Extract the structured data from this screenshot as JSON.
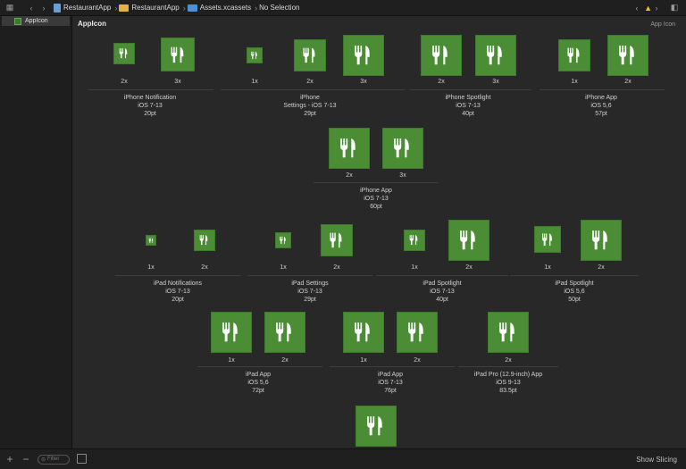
{
  "toolbar": {
    "breadcrumbs": [
      "RestaurantApp",
      "RestaurantApp",
      "Assets.xcassets",
      "No Selection"
    ]
  },
  "sidebar": {
    "items": [
      {
        "label": "AppIcon"
      }
    ]
  },
  "main": {
    "title": "AppIcon",
    "right_label": "App Icon"
  },
  "bottom": {
    "filter_placeholder": "Filter",
    "right_button": "Show Slicing"
  },
  "icon_color": "#4a8d35",
  "groups": [
    {
      "lines": [
        "iPhone Notification",
        "iOS 7-13",
        "20pt"
      ]
    },
    {
      "lines": [
        "iPhone",
        "Settings - iOS 7-13",
        "29pt"
      ]
    },
    {
      "lines": [
        "iPhone Spotlight",
        "iOS 7-13",
        "40pt"
      ]
    },
    {
      "lines": [
        "iPhone App",
        "iOS 5,6",
        "57pt"
      ]
    },
    {
      "lines": [
        "iPhone App",
        "iOS 7-13",
        "60pt"
      ]
    },
    {
      "lines": [
        "iPad Notifications",
        "iOS 7-13",
        "20pt"
      ]
    },
    {
      "lines": [
        "iPad Settings",
        "iOS 7-13",
        "29pt"
      ]
    },
    {
      "lines": [
        "iPad Spotlight",
        "iOS 7-13",
        "40pt"
      ]
    },
    {
      "lines": [
        "iPad Spotlight",
        "iOS 5,6",
        "50pt"
      ]
    },
    {
      "lines": [
        "iPad App",
        "iOS 5,6",
        "72pt"
      ]
    },
    {
      "lines": [
        "iPad App",
        "iOS 7-13",
        "76pt"
      ]
    },
    {
      "lines": [
        "iPad Pro (12.9-inch) App",
        "iOS 9-13",
        "83.5pt"
      ]
    }
  ],
  "slots": [
    {
      "scale": "2x"
    },
    {
      "scale": "3x"
    },
    {
      "scale": "1x"
    },
    {
      "scale": "2x"
    },
    {
      "scale": "3x"
    },
    {
      "scale": "2x"
    },
    {
      "scale": "3x"
    },
    {
      "scale": "1x"
    },
    {
      "scale": "2x"
    },
    {
      "scale": "2x"
    },
    {
      "scale": "3x"
    },
    {
      "scale": "1x"
    },
    {
      "scale": "2x"
    },
    {
      "scale": "1x"
    },
    {
      "scale": "2x"
    },
    {
      "scale": "1x"
    },
    {
      "scale": "2x"
    },
    {
      "scale": "1x"
    },
    {
      "scale": "2x"
    },
    {
      "scale": "1x"
    },
    {
      "scale": "2x"
    },
    {
      "scale": "1x"
    },
    {
      "scale": "2x"
    },
    {
      "scale": "2x"
    },
    {
      "scale": ""
    }
  ]
}
